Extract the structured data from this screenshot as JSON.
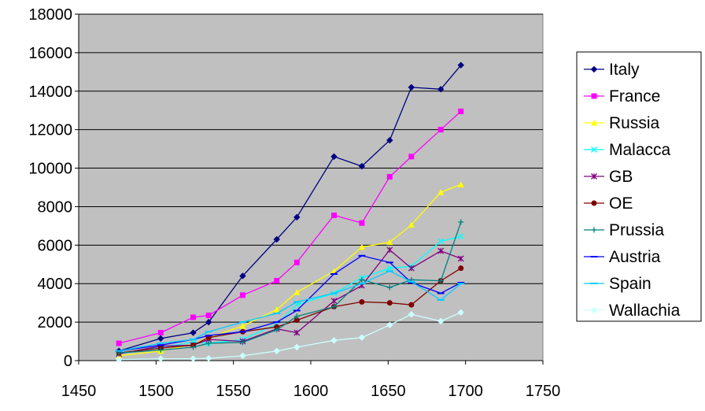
{
  "chart_data": {
    "type": "line",
    "title": "",
    "xlabel": "",
    "ylabel": "",
    "xlim": [
      1450,
      1750
    ],
    "ylim": [
      0,
      18000
    ],
    "x_ticks": [
      "1450",
      "1500",
      "1550",
      "1600",
      "1650",
      "1700",
      "1750"
    ],
    "y_ticks": [
      "0",
      "2000",
      "4000",
      "6000",
      "8000",
      "10000",
      "12000",
      "14000",
      "16000",
      "18000"
    ],
    "grid": "horizontal",
    "plot_background": "#c0c0c0",
    "legend_position": "right",
    "series": [
      {
        "name": "Italy",
        "color": "#000080",
        "marker": "diamond",
        "points": [
          [
            1476,
            500
          ],
          [
            1503,
            1150
          ],
          [
            1524,
            1450
          ],
          [
            1534,
            2000
          ],
          [
            1556,
            4400
          ],
          [
            1578,
            6300
          ],
          [
            1591,
            7450
          ],
          [
            1615,
            10600
          ],
          [
            1633,
            10100
          ],
          [
            1651,
            11450
          ],
          [
            1665,
            14200
          ],
          [
            1684,
            14100
          ],
          [
            1697,
            15350
          ]
        ]
      },
      {
        "name": "France",
        "color": "#ff00ff",
        "marker": "square",
        "points": [
          [
            1476,
            900
          ],
          [
            1503,
            1450
          ],
          [
            1524,
            2250
          ],
          [
            1534,
            2350
          ],
          [
            1556,
            3400
          ],
          [
            1578,
            4150
          ],
          [
            1591,
            5100
          ],
          [
            1615,
            7550
          ],
          [
            1633,
            7150
          ],
          [
            1651,
            9550
          ],
          [
            1665,
            10600
          ],
          [
            1684,
            12000
          ],
          [
            1697,
            12950
          ]
        ]
      },
      {
        "name": "Russia",
        "color": "#ffff00",
        "marker": "triangle",
        "points": [
          [
            1476,
            250
          ],
          [
            1503,
            500
          ],
          [
            1524,
            850
          ],
          [
            1534,
            1200
          ],
          [
            1556,
            1800
          ],
          [
            1578,
            2650
          ],
          [
            1591,
            3550
          ],
          [
            1615,
            4650
          ],
          [
            1633,
            5900
          ],
          [
            1651,
            6150
          ],
          [
            1665,
            7050
          ],
          [
            1684,
            8750
          ],
          [
            1697,
            9150
          ]
        ]
      },
      {
        "name": "Malacca",
        "color": "#00ffff",
        "marker": "x",
        "points": [
          [
            1476,
            350
          ],
          [
            1503,
            700
          ],
          [
            1524,
            950
          ],
          [
            1534,
            900
          ],
          [
            1556,
            1100
          ],
          [
            1578,
            1900
          ],
          [
            1591,
            2900
          ],
          [
            1615,
            3500
          ],
          [
            1633,
            4300
          ],
          [
            1651,
            4800
          ],
          [
            1665,
            4900
          ],
          [
            1684,
            6200
          ],
          [
            1697,
            6450
          ]
        ]
      },
      {
        "name": "GB",
        "color": "#800080",
        "marker": "star",
        "points": [
          [
            1476,
            350
          ],
          [
            1503,
            750
          ],
          [
            1524,
            800
          ],
          [
            1534,
            1100
          ],
          [
            1556,
            1000
          ],
          [
            1578,
            1650
          ],
          [
            1591,
            1450
          ],
          [
            1615,
            3100
          ],
          [
            1633,
            3900
          ],
          [
            1651,
            5750
          ],
          [
            1665,
            4800
          ],
          [
            1684,
            5700
          ],
          [
            1697,
            5300
          ]
        ]
      },
      {
        "name": "OE",
        "color": "#800000",
        "marker": "circle",
        "points": [
          [
            1476,
            400
          ],
          [
            1503,
            650
          ],
          [
            1524,
            800
          ],
          [
            1534,
            1200
          ],
          [
            1556,
            1500
          ],
          [
            1578,
            1750
          ],
          [
            1591,
            2100
          ],
          [
            1615,
            2800
          ],
          [
            1633,
            3050
          ],
          [
            1651,
            3000
          ],
          [
            1665,
            2900
          ],
          [
            1684,
            4150
          ],
          [
            1697,
            4800
          ]
        ]
      },
      {
        "name": "Prussia",
        "color": "#008080",
        "marker": "plus",
        "points": [
          [
            1476,
            400
          ],
          [
            1503,
            550
          ],
          [
            1524,
            700
          ],
          [
            1534,
            900
          ],
          [
            1556,
            950
          ],
          [
            1578,
            1600
          ],
          [
            1591,
            2300
          ],
          [
            1615,
            2800
          ],
          [
            1633,
            4200
          ],
          [
            1651,
            3800
          ],
          [
            1665,
            4200
          ],
          [
            1684,
            4150
          ],
          [
            1697,
            7200
          ]
        ]
      },
      {
        "name": "Austria",
        "color": "#0000ff",
        "marker": "dash",
        "points": [
          [
            1476,
            500
          ],
          [
            1503,
            800
          ],
          [
            1524,
            1100
          ],
          [
            1534,
            1300
          ],
          [
            1556,
            1500
          ],
          [
            1578,
            2000
          ],
          [
            1591,
            2600
          ],
          [
            1615,
            4500
          ],
          [
            1633,
            5450
          ],
          [
            1651,
            5100
          ],
          [
            1665,
            4050
          ],
          [
            1684,
            3500
          ],
          [
            1697,
            4050
          ]
        ]
      },
      {
        "name": "Spain",
        "color": "#00ccff",
        "marker": "dash",
        "points": [
          [
            1476,
            500
          ],
          [
            1503,
            900
          ],
          [
            1524,
            1100
          ],
          [
            1534,
            1500
          ],
          [
            1556,
            2000
          ],
          [
            1578,
            2450
          ],
          [
            1591,
            3050
          ],
          [
            1615,
            3500
          ],
          [
            1633,
            4000
          ],
          [
            1651,
            4650
          ],
          [
            1665,
            4100
          ],
          [
            1684,
            3150
          ],
          [
            1697,
            4000
          ]
        ]
      },
      {
        "name": "Wallachia",
        "color": "#ccffff",
        "marker": "diamond",
        "points": [
          [
            1476,
            50
          ],
          [
            1503,
            100
          ],
          [
            1524,
            100
          ],
          [
            1534,
            120
          ],
          [
            1556,
            250
          ],
          [
            1578,
            500
          ],
          [
            1591,
            700
          ],
          [
            1615,
            1050
          ],
          [
            1633,
            1200
          ],
          [
            1651,
            1850
          ],
          [
            1665,
            2400
          ],
          [
            1684,
            2050
          ],
          [
            1697,
            2500
          ]
        ]
      }
    ]
  }
}
